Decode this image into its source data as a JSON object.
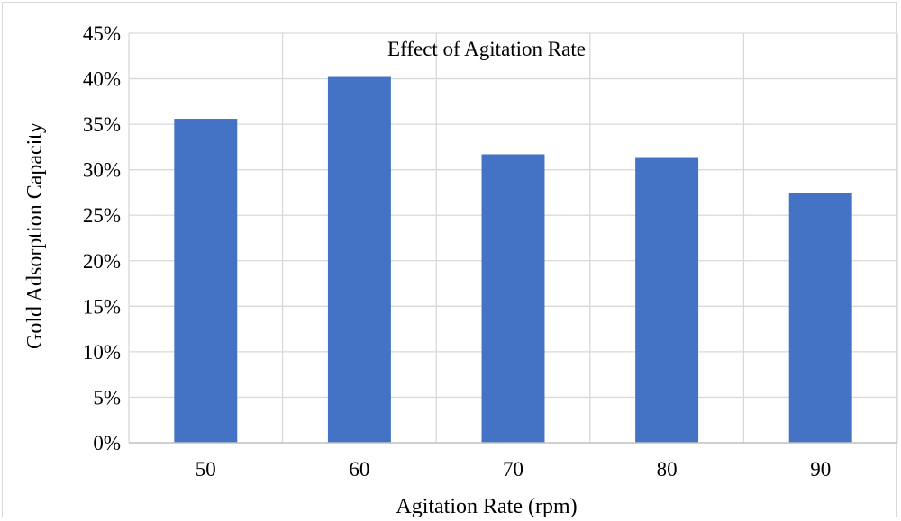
{
  "chart_data": {
    "type": "bar",
    "title": "Effect of Agitation Rate",
    "xlabel": "Agitation Rate (rpm)",
    "ylabel": "Gold Adsorption Capacity",
    "categories": [
      "50",
      "60",
      "70",
      "80",
      "90"
    ],
    "values": [
      0.356,
      0.402,
      0.317,
      0.313,
      0.274
    ],
    "ylim": [
      0,
      0.45
    ],
    "yticks": [
      0,
      0.05,
      0.1,
      0.15,
      0.2,
      0.25,
      0.3,
      0.35,
      0.4,
      0.45
    ],
    "ytick_labels": [
      "0%",
      "5%",
      "10%",
      "15%",
      "20%",
      "25%",
      "30%",
      "35%",
      "40%",
      "45%"
    ],
    "grid": true,
    "legend": "none",
    "bar_color": "#4472C4",
    "grid_color": "#d9d9d9"
  }
}
